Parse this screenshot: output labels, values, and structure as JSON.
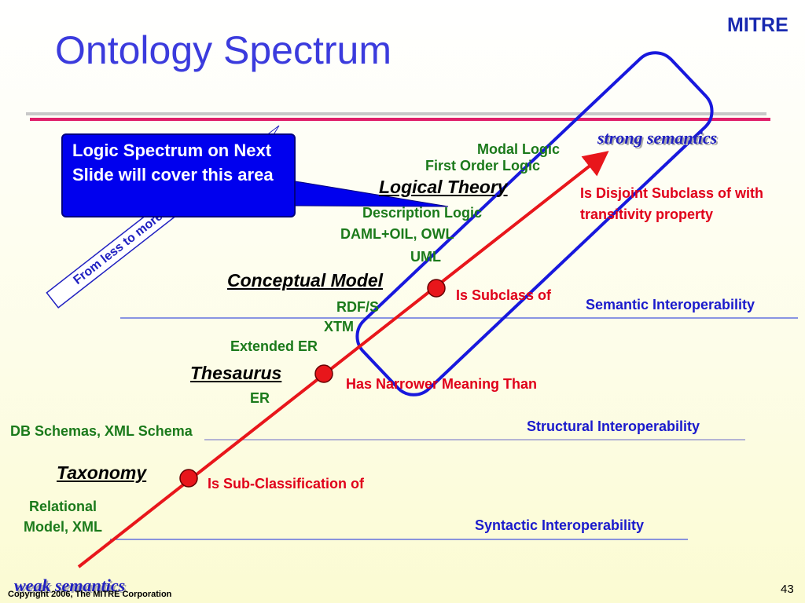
{
  "title": "Ontology Spectrum",
  "logo": "MITRE",
  "callout": "Logic Spectrum on Next Slide will cover this area",
  "axis_label": "From less to more expressive",
  "ends": {
    "strong": "strong semantics",
    "weak": "weak semantics"
  },
  "levels": [
    {
      "name": "Logical Theory",
      "relation": "Is Disjoint Subclass of with transitivity property"
    },
    {
      "name": "Conceptual Model",
      "relation": "Is Subclass of"
    },
    {
      "name": "Thesaurus",
      "relation": "Has Narrower Meaning Than"
    },
    {
      "name": "Taxonomy",
      "relation": "Is Sub-Classification of"
    }
  ],
  "examples": [
    "Modal Logic",
    "First Order Logic",
    "Description Logic",
    "DAML+OIL, OWL",
    "UML",
    "RDF/S",
    "XTM",
    "Extended ER",
    "ER",
    "DB Schemas, XML Schema",
    "Relational Model, XML"
  ],
  "interoperability": [
    "Semantic Interoperability",
    "Structural Interoperability",
    "Syntactic Interoperability"
  ],
  "footer": {
    "copyright": "Copyright 2006, The MITRE Corporation",
    "page": "43"
  }
}
